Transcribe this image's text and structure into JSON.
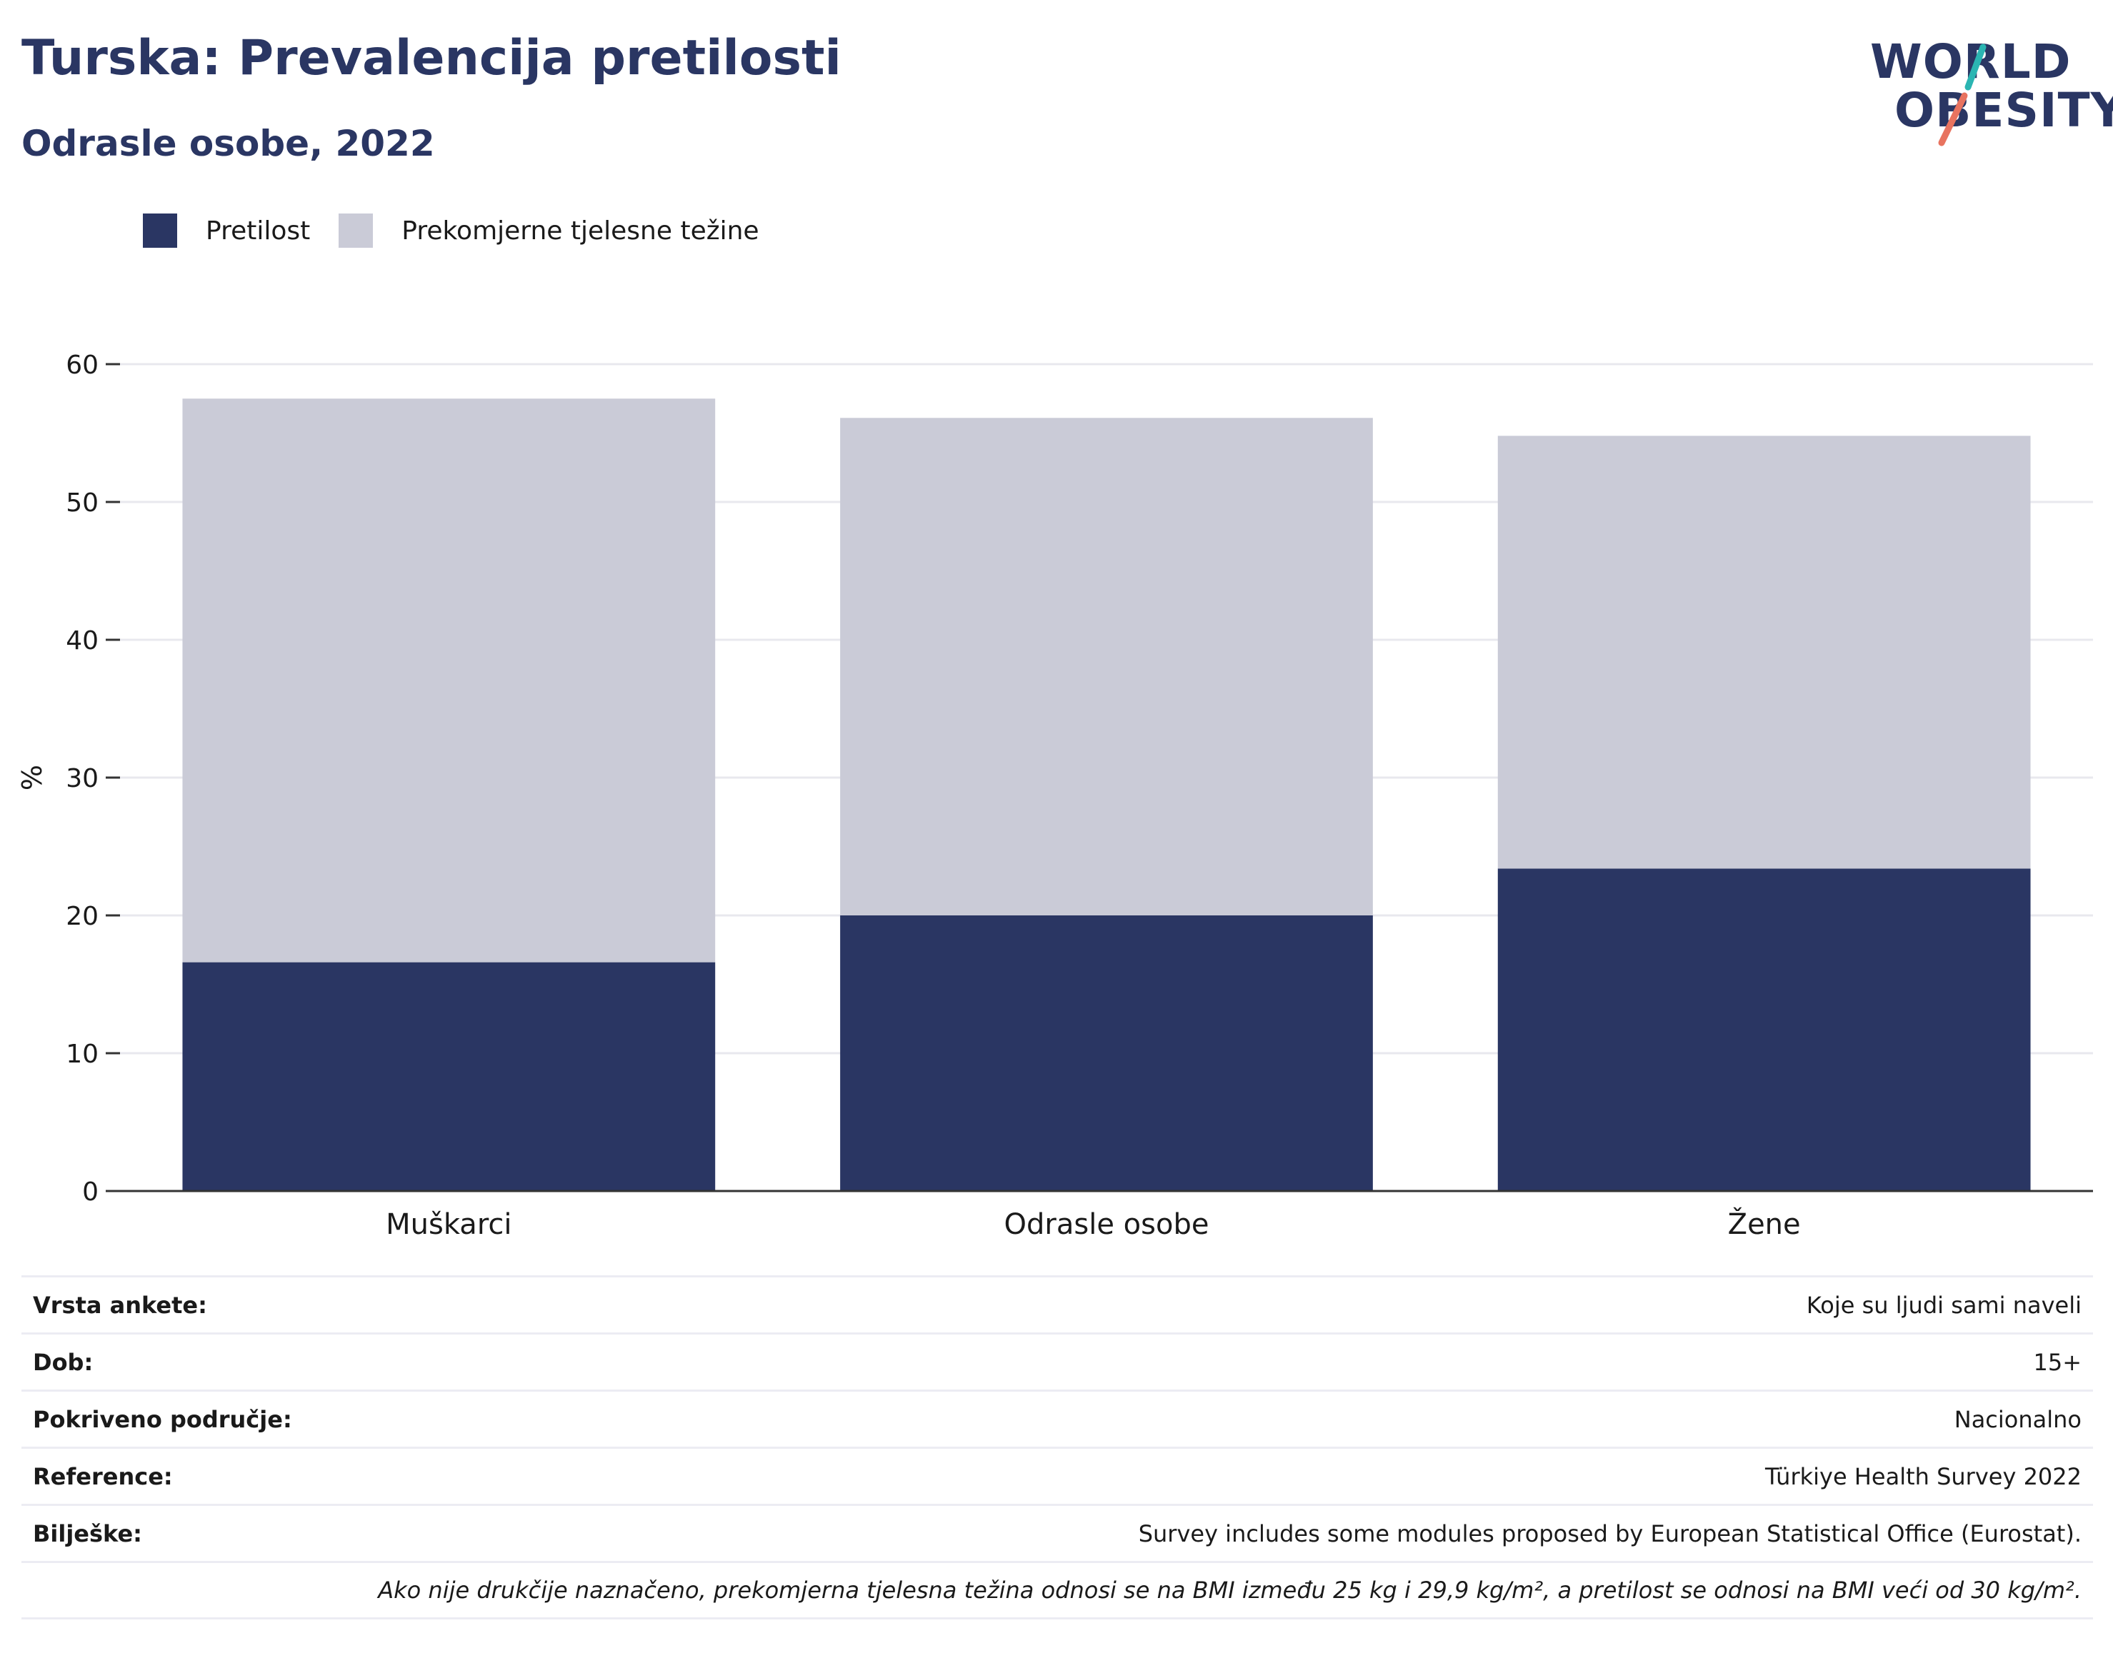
{
  "header": {
    "title": "Turska: Prevalencija pretilosti",
    "subtitle": "Odrasle osobe, 2022"
  },
  "logo": {
    "line1": "WORLD",
    "line2": "OBESITY",
    "accent_colors": [
      "#2bb5b2",
      "#e8735f"
    ]
  },
  "legend": [
    {
      "label": "Pretilost",
      "color": "#2a3663"
    },
    {
      "label": "Prekomjerne tjelesne težine",
      "color": "#cacbd7"
    }
  ],
  "chart_data": {
    "type": "bar",
    "stacked": true,
    "categories": [
      "Muškarci",
      "Odrasle osobe",
      "Žene"
    ],
    "series": [
      {
        "name": "Pretilost",
        "values": [
          16.6,
          20.0,
          23.4
        ],
        "color": "#2a3663"
      },
      {
        "name": "Prekomjerne tjelesne težine",
        "values": [
          40.9,
          36.1,
          31.4
        ],
        "color": "#cacbd7"
      }
    ],
    "ylabel": "%",
    "ylim": [
      0,
      60
    ],
    "yticks": [
      0,
      10,
      20,
      30,
      40,
      50,
      60
    ],
    "grid": true,
    "legend_position": "top-left"
  },
  "info": {
    "rows": [
      {
        "key": "Vrsta ankete:",
        "value": "Koje su ljudi sami naveli"
      },
      {
        "key": "Dob:",
        "value": "15+"
      },
      {
        "key": "Pokriveno područje:",
        "value": "Nacionalno"
      },
      {
        "key": "Reference:",
        "value": "Türkiye Health Survey 2022"
      },
      {
        "key": "Bilješke:",
        "value": "Survey includes some modules proposed by European Statistical Office (Eurostat)."
      }
    ],
    "note": "Ako nije drukčije naznačeno, prekomjerna tjelesna težina odnosi se na BMI između 25 kg i 29,9 kg/m², a pretilost se odnosi na BMI veći od 30 kg/m²."
  }
}
